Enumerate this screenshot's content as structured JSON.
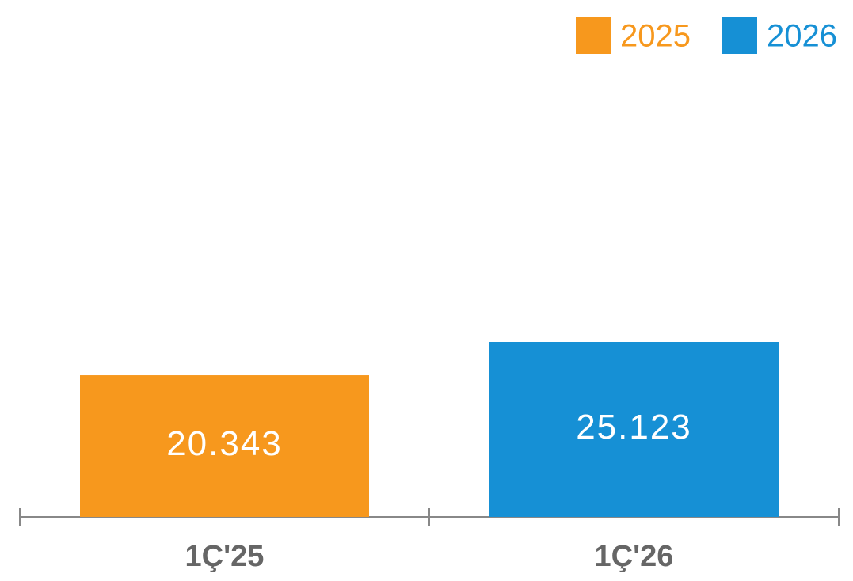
{
  "chart_data": {
    "type": "bar",
    "categories": [
      "1Ç'25",
      "1Ç'26"
    ],
    "series": [
      {
        "name": "2025",
        "color": "#f7981d",
        "values": [
          20343,
          null
        ],
        "value_labels": [
          "20.343",
          null
        ]
      },
      {
        "name": "2026",
        "color": "#1690d5",
        "values": [
          null,
          25123
        ],
        "value_labels": [
          null,
          "25.123"
        ]
      }
    ],
    "legend": "top-right"
  }
}
